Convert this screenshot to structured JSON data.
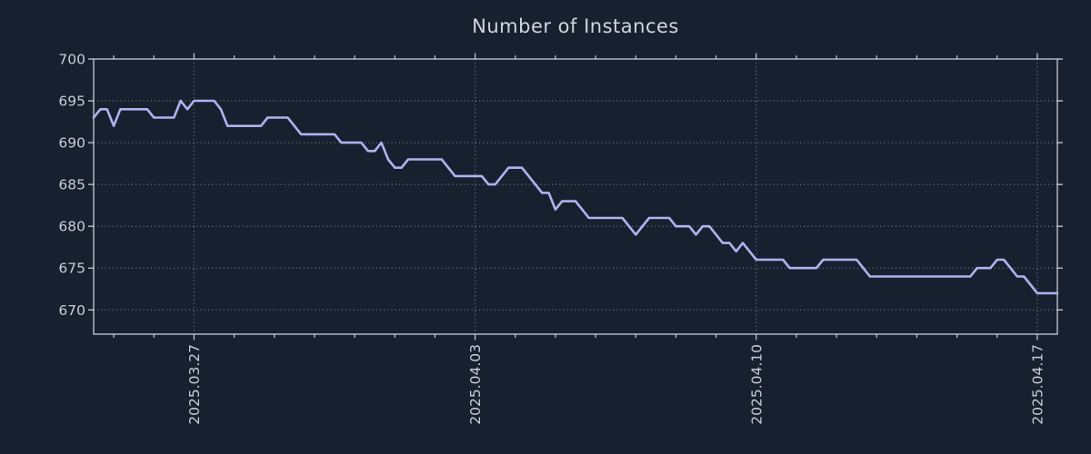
{
  "colors": {
    "background": "#17202e",
    "line": "#aeb3f0",
    "grid": "#a0a5ab",
    "axis": "#c8cdd4",
    "tick_label": "#c9ced5",
    "title": "#d2d6dc"
  },
  "chart_data": {
    "type": "line",
    "title": "Number of Instances",
    "ylabel": "",
    "xlabel": "",
    "ylim": [
      667.1,
      700
    ],
    "y_ticks": [
      670,
      675,
      680,
      685,
      690,
      695,
      700
    ],
    "grid": {
      "style": "dotted",
      "on_major_ticks_only": true
    },
    "legend": "none",
    "x_axis": {
      "total_days": 24,
      "first_tick_day": 0.5,
      "minor_tick_every_days": 1,
      "major_ticks": [
        {
          "day": 2.5,
          "label": "2025.03.27"
        },
        {
          "day": 9.5,
          "label": "2025.04.03"
        },
        {
          "day": 16.5,
          "label": "2025.04.10"
        },
        {
          "day": 23.5,
          "label": "2025.04.17"
        }
      ]
    },
    "points_per_day": 6,
    "series": [
      {
        "name": "instances",
        "values": [
          693,
          694,
          694,
          692,
          694,
          694,
          694,
          694,
          694,
          693,
          693,
          693,
          693,
          695,
          694,
          695,
          695,
          695,
          695,
          694,
          692,
          692,
          692,
          692,
          692,
          692,
          693,
          693,
          693,
          693,
          692,
          691,
          691,
          691,
          691,
          691,
          691,
          690,
          690,
          690,
          690,
          689,
          689,
          690,
          688,
          687,
          687,
          688,
          688,
          688,
          688,
          688,
          688,
          687,
          686,
          686,
          686,
          686,
          686,
          685,
          685,
          686,
          687,
          687,
          687,
          686,
          685,
          684,
          684,
          682,
          683,
          683,
          683,
          682,
          681,
          681,
          681,
          681,
          681,
          681,
          680,
          679,
          680,
          681,
          681,
          681,
          681,
          680,
          680,
          680,
          679,
          680,
          680,
          679,
          678,
          678,
          677,
          678,
          677,
          676,
          676,
          676,
          676,
          676,
          675,
          675,
          675,
          675,
          675,
          676,
          676,
          676,
          676,
          676,
          676,
          675,
          674,
          674,
          674,
          674,
          674,
          674,
          674,
          674,
          674,
          674,
          674,
          674,
          674,
          674,
          674,
          674,
          675,
          675,
          675,
          676,
          676,
          675,
          674,
          674,
          673,
          672,
          672,
          672,
          672
        ]
      }
    ]
  }
}
